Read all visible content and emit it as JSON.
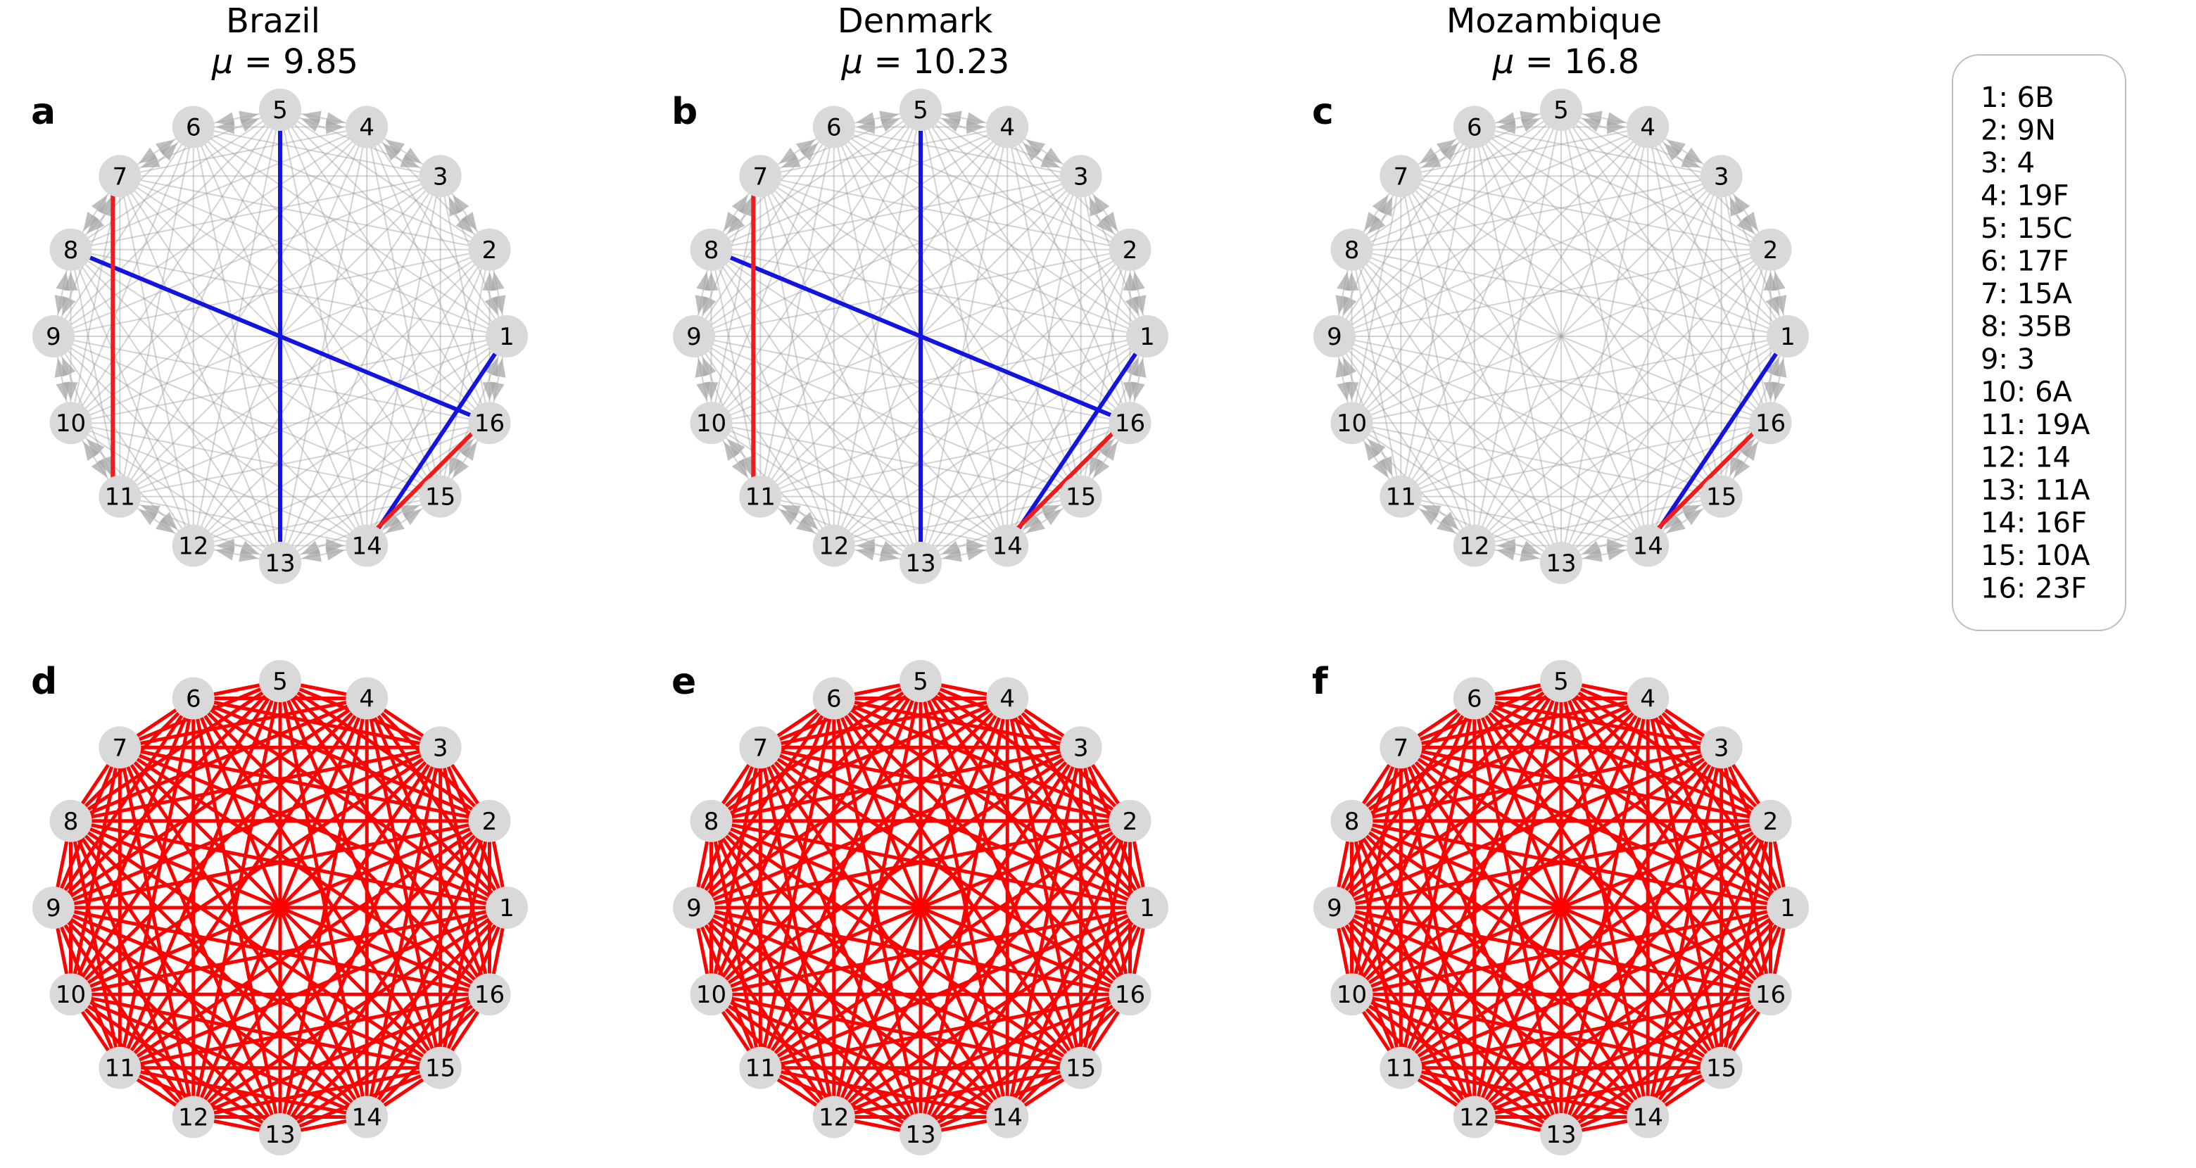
{
  "columns": [
    {
      "title": "Brazil",
      "mu_prefix": "μ = ",
      "mu_value": "9.85",
      "top_letter": "a",
      "bottom_letter": "d",
      "highlight_blue": [
        [
          5,
          13
        ],
        [
          8,
          16
        ],
        [
          1,
          14
        ]
      ],
      "highlight_red": [
        [
          7,
          11
        ],
        [
          14,
          16
        ]
      ]
    },
    {
      "title": "Denmark",
      "mu_prefix": "μ = ",
      "mu_value": "10.23",
      "top_letter": "b",
      "bottom_letter": "e",
      "highlight_blue": [
        [
          5,
          13
        ],
        [
          8,
          16
        ],
        [
          1,
          14
        ]
      ],
      "highlight_red": [
        [
          7,
          11
        ],
        [
          14,
          16
        ]
      ]
    },
    {
      "title": "Mozambique",
      "mu_prefix": "μ = ",
      "mu_value": "16.8",
      "top_letter": "c",
      "bottom_letter": "f",
      "highlight_blue": [
        [
          1,
          14
        ]
      ],
      "highlight_red": [
        [
          14,
          16
        ]
      ]
    }
  ],
  "node_labels": [
    "1",
    "2",
    "3",
    "4",
    "5",
    "6",
    "7",
    "8",
    "9",
    "10",
    "11",
    "12",
    "13",
    "14",
    "15",
    "16"
  ],
  "legend": {
    "items": [
      "1: 6B",
      "2: 9N",
      "3: 4",
      "4: 19F",
      "5: 15C",
      "6: 17F",
      "7: 15A",
      "8: 35B",
      "9: 3",
      "10: 6A",
      "11: 19A",
      "12: 14",
      "13: 11A",
      "14: 16F",
      "15: 10A",
      "16: 23F"
    ]
  },
  "colors": {
    "node_fill": "#d9d9d9",
    "grey_edge": "#9e9e9e",
    "arrow": "#a8a8a8",
    "blue": "#1414e0",
    "red": "#ee1c1c",
    "complete_edge": "#ff0000"
  }
}
